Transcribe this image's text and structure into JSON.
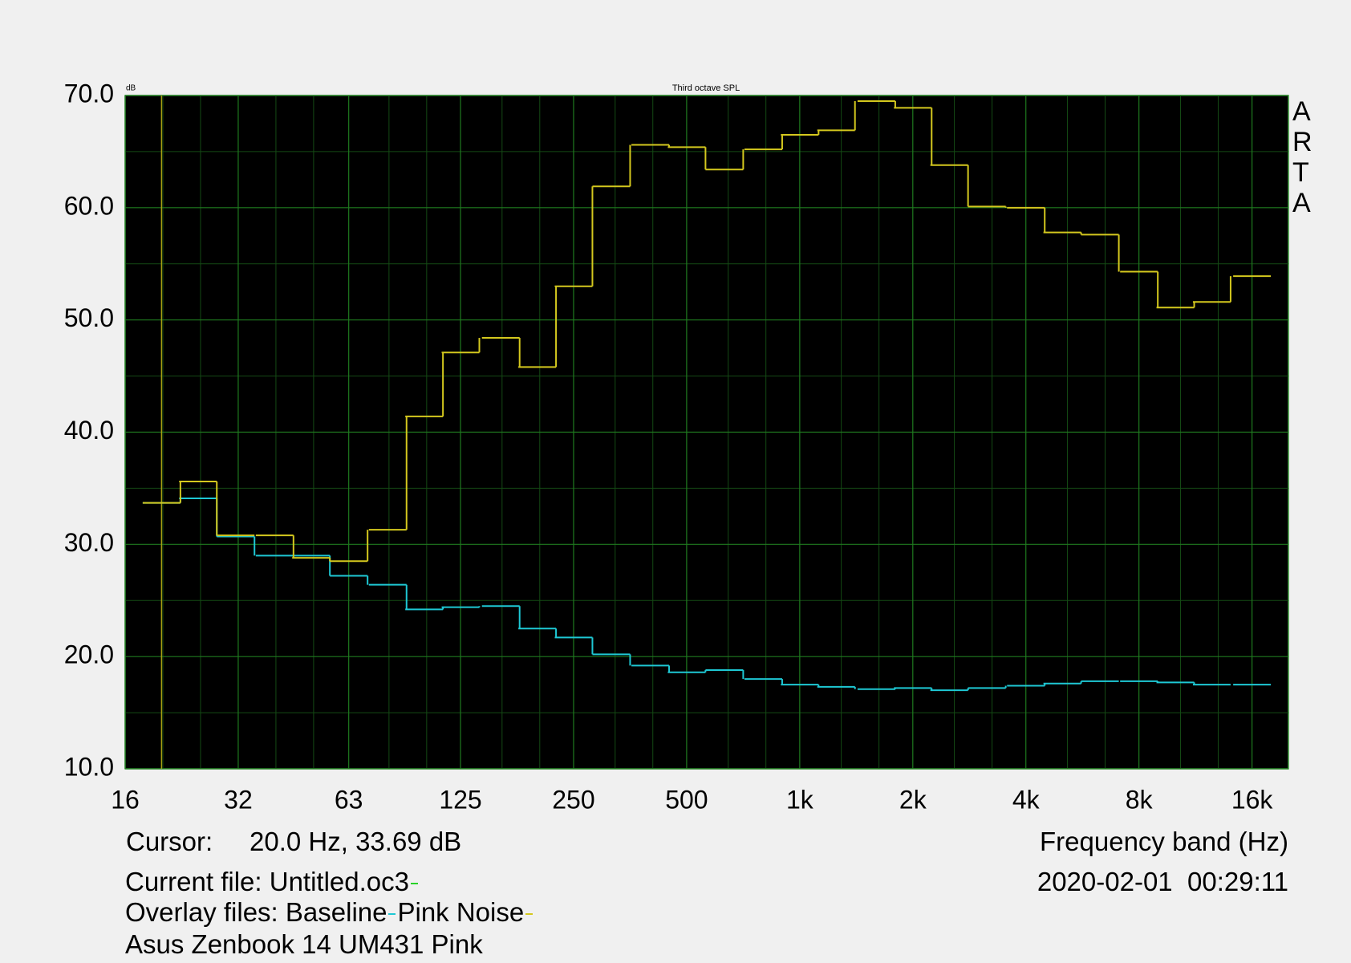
{
  "chart_data": {
    "type": "step",
    "title": "Third octave SPL",
    "y_unit": "dB",
    "x_label": "Frequency band (Hz)",
    "watermark": "ARTA",
    "xscale": "log",
    "xlim": [
      16,
      20000
    ],
    "ylim": [
      10,
      70
    ],
    "xticks": [
      16,
      32,
      63,
      125,
      250,
      500,
      {
        "value": 1000,
        "label": "1k"
      },
      {
        "value": 2000,
        "label": "2k"
      },
      {
        "value": 4000,
        "label": "4k"
      },
      {
        "value": 8000,
        "label": "8k"
      },
      {
        "value": 16000,
        "label": "16k"
      }
    ],
    "yticks": [
      {
        "value": 10,
        "label": "10.0"
      },
      {
        "value": 20,
        "label": "20.0"
      },
      {
        "value": 30,
        "label": "30.0"
      },
      {
        "value": 40,
        "label": "40.0"
      },
      {
        "value": 50,
        "label": "50.0"
      },
      {
        "value": 60,
        "label": "60.0"
      },
      {
        "value": 70,
        "label": "70.0"
      }
    ],
    "grid": true,
    "x": [
      20,
      25,
      31.5,
      40,
      50,
      63,
      80,
      100,
      125,
      160,
      200,
      250,
      315,
      400,
      500,
      630,
      800,
      1000,
      1250,
      1600,
      2000,
      2500,
      3150,
      4000,
      5000,
      6300,
      8000,
      10000,
      12500,
      16000
    ],
    "series": [
      {
        "name": "Baseline",
        "color": "#1ec8d4",
        "values": [
          33.7,
          34.1,
          30.7,
          29.0,
          29.0,
          27.2,
          26.4,
          24.2,
          24.4,
          24.5,
          22.5,
          21.7,
          20.2,
          19.2,
          18.6,
          18.8,
          18.0,
          17.5,
          17.3,
          17.1,
          17.2,
          17.0,
          17.2,
          17.4,
          17.6,
          17.8,
          17.8,
          17.7,
          17.5,
          17.5
        ]
      },
      {
        "name": "Pink Noise",
        "color": "#d4c81e",
        "values": [
          33.7,
          35.6,
          30.8,
          30.8,
          28.8,
          28.5,
          31.3,
          41.4,
          47.1,
          48.4,
          45.8,
          53.0,
          61.9,
          65.6,
          65.4,
          63.4,
          65.2,
          66.5,
          66.9,
          69.5,
          68.9,
          63.8,
          60.1,
          60.0,
          57.8,
          57.6,
          54.3,
          51.1,
          51.6,
          53.9
        ]
      }
    ],
    "cursor": {
      "label": "Cursor:",
      "readout": "20.0 Hz, 33.69 dB",
      "x": 20,
      "color": "#a8a012"
    },
    "timestamp": "2020-02-01  00:29:11",
    "current_file": {
      "label": "Current file:",
      "name": "Untitled.oc3",
      "color": "#28d228"
    },
    "overlay_label": "Overlay files:",
    "note": "Asus Zenbook 14 UM431 Pink"
  }
}
